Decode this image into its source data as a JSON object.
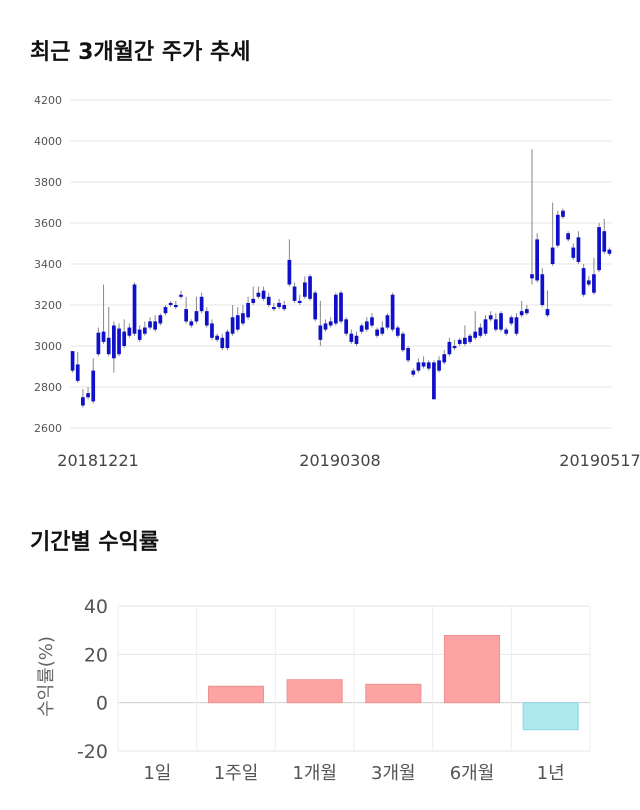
{
  "section1": {
    "title": "최근 3개월간 주가 추세"
  },
  "section2": {
    "title": "기간별 수익률"
  },
  "chart_data": [
    {
      "type": "candlestick",
      "title": "최근 3개월간 주가 추세",
      "ylim": [
        2600,
        4200
      ],
      "yticks": [
        2600,
        2800,
        3000,
        3200,
        3400,
        3600,
        3800,
        4000,
        4200
      ],
      "xticks": [
        "20181221",
        "20190308",
        "20190517"
      ],
      "grid": true,
      "colors": {
        "up": "#d42020",
        "down": "#1010c8",
        "wick": "#888888"
      },
      "candles": [
        [
          2975,
          2975,
          2880,
          2870
        ],
        [
          2910,
          2970,
          2830,
          2820
        ],
        [
          2750,
          2790,
          2710,
          2700
        ],
        [
          2770,
          2800,
          2750,
          2740
        ],
        [
          2880,
          2940,
          2730,
          2720
        ],
        [
          3065,
          3090,
          2960,
          2950
        ],
        [
          3070,
          3300,
          3020,
          3010
        ],
        [
          3040,
          3190,
          2960,
          2950
        ],
        [
          3100,
          3120,
          2940,
          2870
        ],
        [
          3085,
          3110,
          2960,
          2950
        ],
        [
          3070,
          3130,
          3000,
          2990
        ],
        [
          3090,
          3110,
          3050,
          3040
        ],
        [
          3300,
          3310,
          3060,
          3050
        ],
        [
          3080,
          3100,
          3030,
          3020
        ],
        [
          3090,
          3120,
          3060,
          3050
        ],
        [
          3120,
          3140,
          3090,
          3080
        ],
        [
          3120,
          3150,
          3080,
          3070
        ],
        [
          3150,
          3160,
          3110,
          3100
        ],
        [
          3190,
          3200,
          3160,
          3150
        ],
        [
          3210,
          3220,
          3200,
          3190
        ],
        [
          3200,
          3220,
          3190,
          3180
        ],
        [
          3250,
          3270,
          3240,
          3230
        ],
        [
          3180,
          3240,
          3120,
          3110
        ],
        [
          3120,
          3130,
          3100,
          3090
        ],
        [
          3170,
          3240,
          3120,
          3110
        ],
        [
          3240,
          3260,
          3170,
          3160
        ],
        [
          3170,
          3190,
          3100,
          3090
        ],
        [
          3110,
          3130,
          3040,
          3030
        ],
        [
          3050,
          3060,
          3030,
          3020
        ],
        [
          3040,
          3060,
          2990,
          2980
        ],
        [
          3070,
          3080,
          2990,
          2980
        ],
        [
          3140,
          3200,
          3060,
          3050
        ],
        [
          3150,
          3190,
          3080,
          3070
        ],
        [
          3160,
          3200,
          3110,
          3100
        ],
        [
          3210,
          3240,
          3140,
          3130
        ],
        [
          3230,
          3290,
          3210,
          3200
        ],
        [
          3260,
          3290,
          3240,
          3230
        ],
        [
          3270,
          3290,
          3230,
          3220
        ],
        [
          3240,
          3260,
          3200,
          3190
        ],
        [
          3190,
          3210,
          3180,
          3170
        ],
        [
          3210,
          3230,
          3190,
          3180
        ],
        [
          3200,
          3220,
          3180,
          3170
        ],
        [
          3420,
          3520,
          3300,
          3290
        ],
        [
          3290,
          3310,
          3220,
          3210
        ],
        [
          3220,
          3250,
          3210,
          3200
        ],
        [
          3310,
          3340,
          3240,
          3230
        ],
        [
          3340,
          3350,
          3230,
          3220
        ],
        [
          3260,
          3270,
          3130,
          3120
        ],
        [
          3100,
          3220,
          3030,
          3000
        ],
        [
          3110,
          3130,
          3080,
          3070
        ],
        [
          3120,
          3140,
          3100,
          3090
        ],
        [
          3250,
          3260,
          3110,
          3100
        ],
        [
          3260,
          3270,
          3120,
          3110
        ],
        [
          3130,
          3140,
          3060,
          3050
        ],
        [
          3060,
          3080,
          3020,
          3010
        ],
        [
          3050,
          3070,
          3010,
          3000
        ],
        [
          3100,
          3110,
          3070,
          3060
        ],
        [
          3120,
          3140,
          3080,
          3070
        ],
        [
          3140,
          3160,
          3100,
          3090
        ],
        [
          3080,
          3090,
          3050,
          3040
        ],
        [
          3090,
          3120,
          3060,
          3050
        ],
        [
          3150,
          3160,
          3090,
          3080
        ],
        [
          3250,
          3260,
          3080,
          3070
        ],
        [
          3090,
          3100,
          3050,
          3040
        ],
        [
          3060,
          3070,
          2980,
          2970
        ],
        [
          2990,
          3000,
          2930,
          2920
        ],
        [
          2880,
          2890,
          2860,
          2850
        ],
        [
          2920,
          2940,
          2880,
          2870
        ],
        [
          2920,
          2950,
          2900,
          2890
        ],
        [
          2920,
          2930,
          2890,
          2880
        ],
        [
          2920,
          2930,
          2740,
          2750
        ],
        [
          2930,
          2950,
          2880,
          2870
        ],
        [
          2960,
          2980,
          2920,
          2910
        ],
        [
          3020,
          3040,
          2960,
          2950
        ],
        [
          3000,
          3030,
          2990,
          2980
        ],
        [
          3030,
          3040,
          3010,
          3000
        ],
        [
          3040,
          3100,
          3010,
          3000
        ],
        [
          3050,
          3060,
          3020,
          3010
        ],
        [
          3070,
          3170,
          3040,
          3030
        ],
        [
          3090,
          3110,
          3050,
          3040
        ],
        [
          3130,
          3150,
          3060,
          3050
        ],
        [
          3150,
          3170,
          3130,
          3120
        ],
        [
          3130,
          3160,
          3080,
          3070
        ],
        [
          3160,
          3170,
          3080,
          3070
        ],
        [
          3080,
          3090,
          3060,
          3050
        ],
        [
          3140,
          3150,
          3110,
          3100
        ],
        [
          3140,
          3160,
          3060,
          3050
        ],
        [
          3170,
          3220,
          3150,
          3140
        ],
        [
          3180,
          3200,
          3160,
          3150
        ],
        [
          3350,
          3960,
          3330,
          3300
        ],
        [
          3520,
          3550,
          3320,
          3310
        ],
        [
          3350,
          3380,
          3200,
          3190
        ],
        [
          3180,
          3270,
          3150,
          3140
        ],
        [
          3480,
          3700,
          3400,
          3390
        ],
        [
          3640,
          3660,
          3490,
          3480
        ],
        [
          3660,
          3670,
          3630,
          3620
        ],
        [
          3550,
          3560,
          3520,
          3510
        ],
        [
          3480,
          3500,
          3430,
          3420
        ],
        [
          3530,
          3560,
          3410,
          3400
        ],
        [
          3380,
          3400,
          3250,
          3240
        ],
        [
          3320,
          3340,
          3300,
          3290
        ],
        [
          3350,
          3430,
          3260,
          3250
        ],
        [
          3580,
          3600,
          3370,
          3360
        ],
        [
          3560,
          3620,
          3460,
          3450
        ],
        [
          3470,
          3480,
          3450,
          3440
        ]
      ]
    },
    {
      "type": "bar",
      "title": "기간별 수익률",
      "categories": [
        "1일",
        "1주일",
        "1개월",
        "3개월",
        "6개월",
        "1년"
      ],
      "values": [
        0,
        6.8,
        9.5,
        7.6,
        27.8,
        -11.2
      ],
      "ylabel": "수익률(%)",
      "ylim": [
        -20,
        40
      ],
      "yticks": [
        -20,
        0,
        20,
        40
      ],
      "colors": {
        "positive": "#fca4a4",
        "negative": "#b0e8f0"
      }
    }
  ]
}
